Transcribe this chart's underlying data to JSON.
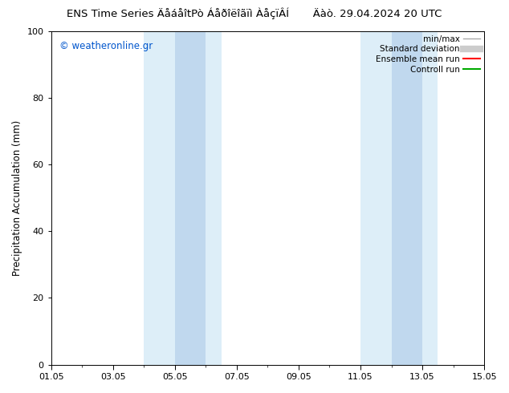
{
  "title": "ENS Time Series ÄåáåîtPò Áåðîëîãïì ÀåçïÂÍ       Äàò. 29.04.2024 20 UTC",
  "ylabel": "Precipitation Accumulation (mm)",
  "ylim": [
    0,
    100
  ],
  "yticks": [
    0,
    20,
    40,
    60,
    80,
    100
  ],
  "xlim": [
    0,
    14
  ],
  "xtick_labels": [
    "01.05",
    "03.05",
    "05.05",
    "07.05",
    "09.05",
    "11.05",
    "13.05",
    "15.05"
  ],
  "xtick_positions": [
    0,
    2,
    4,
    6,
    8,
    10,
    12,
    14
  ],
  "shaded_outer": [
    {
      "x_start": 3.0,
      "x_end": 5.5,
      "color": "#ddeef8"
    },
    {
      "x_start": 10.0,
      "x_end": 12.5,
      "color": "#ddeef8"
    }
  ],
  "shaded_inner": [
    {
      "x_start": 4.0,
      "x_end": 5.0,
      "color": "#c0d8ee"
    },
    {
      "x_start": 11.0,
      "x_end": 12.0,
      "color": "#c0d8ee"
    }
  ],
  "copyright_text": "© weatheronline.gr",
  "copyright_color": "#0055cc",
  "bg_color": "#ffffff",
  "plot_bg_color": "#ffffff",
  "border_color": "#000000",
  "font_size_title": 9.5,
  "font_size_axis": 8.5,
  "font_size_tick": 8,
  "font_size_legend": 7.5,
  "font_size_copyright": 8.5,
  "legend_labels": [
    "min/max",
    "Standard deviation",
    "Ensemble mean run",
    "Controll run"
  ],
  "legend_colors_line": [
    "#aaaaaa",
    "#cccccc",
    "#ff0000",
    "#00aa00"
  ],
  "legend_lw": [
    1.0,
    6.0,
    1.5,
    1.5
  ]
}
